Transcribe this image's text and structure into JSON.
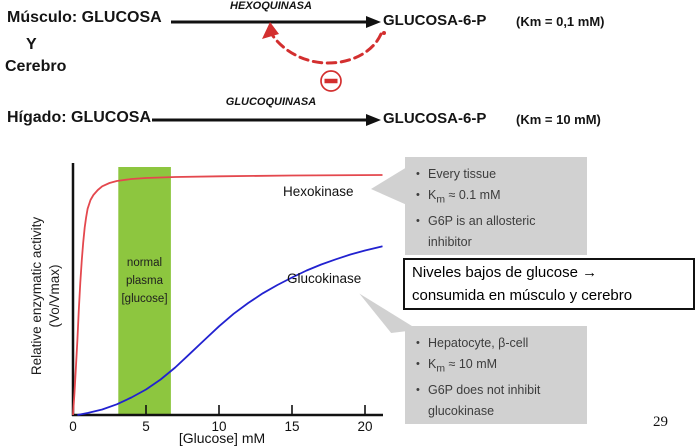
{
  "page_number": "29",
  "colors": {
    "inhibition_red": "#d32f2f",
    "hexokinase_curve_red": "#e4484e",
    "glucokinase_curve_blue": "#2222d0",
    "normal_band_green": "#8dc63f",
    "callout_gray": "#d1d1d1",
    "text_black": "#141414"
  },
  "pathway": {
    "row1": {
      "substrate": "Músculo: GLUCOSA",
      "conjunction": "Y",
      "tissue_extra": "Cerebro",
      "enzyme": "HEXOQUINASA",
      "product": "GLUCOSA-6-P",
      "km": "(Km = 0,1 mM)"
    },
    "row2": {
      "substrate": "Hígado: GLUCOSA",
      "enzyme": "GLUCOQUINASA",
      "product": "GLUCOSA-6-P",
      "km": "(Km = 10 mM)"
    },
    "inhibition_symbol": "−"
  },
  "chart_data": {
    "type": "line",
    "title": "",
    "xlabel": "[Glucose] mM",
    "ylabel": "Relative enzymatic activity (Vo/Vmax)",
    "ylabel_lines": [
      "Relative enzymatic activity",
      "(Vo/Vmax)"
    ],
    "xlim": [
      0,
      21.2
    ],
    "ylim": [
      0,
      1.05
    ],
    "x_ticks": [
      0,
      5,
      10,
      15,
      20
    ],
    "grid": false,
    "legend_position": "inline-labels",
    "annotations": {
      "normal_band": {
        "label": "normal plasma [glucose]",
        "label_lines": [
          "normal",
          "plasma",
          "[glucose]"
        ],
        "x_range_mM": [
          3.1,
          6.7
        ],
        "color": "#8dc63f"
      }
    },
    "series": [
      {
        "name": "Hexokinase",
        "color": "#e4484e",
        "km_mM": 0.1,
        "points_mM_v": [
          [
            0,
            0
          ],
          [
            0.1,
            0.09
          ],
          [
            0.2,
            0.19
          ],
          [
            0.3,
            0.3
          ],
          [
            0.4,
            0.42
          ],
          [
            0.5,
            0.53
          ],
          [
            0.6,
            0.62
          ],
          [
            0.7,
            0.69
          ],
          [
            0.8,
            0.75
          ],
          [
            0.9,
            0.79
          ],
          [
            1.0,
            0.825
          ],
          [
            1.2,
            0.86
          ],
          [
            1.4,
            0.88
          ],
          [
            1.7,
            0.9
          ],
          [
            2.0,
            0.915
          ],
          [
            2.5,
            0.928
          ],
          [
            3.0,
            0.936
          ],
          [
            4.0,
            0.944
          ],
          [
            5.0,
            0.948
          ],
          [
            7.0,
            0.952
          ],
          [
            10,
            0.955
          ],
          [
            15,
            0.958
          ],
          [
            21.2,
            0.96
          ]
        ]
      },
      {
        "name": "Glucokinase",
        "color": "#2222d0",
        "km_mM": 10,
        "points_mM_v": [
          [
            0.3,
            0
          ],
          [
            1,
            0.008
          ],
          [
            2,
            0.022
          ],
          [
            3,
            0.043
          ],
          [
            4,
            0.07
          ],
          [
            5,
            0.102
          ],
          [
            6,
            0.142
          ],
          [
            7,
            0.19
          ],
          [
            8,
            0.245
          ],
          [
            9,
            0.3
          ],
          [
            10,
            0.355
          ],
          [
            11,
            0.405
          ],
          [
            12,
            0.448
          ],
          [
            13,
            0.487
          ],
          [
            14,
            0.52
          ],
          [
            15,
            0.55
          ],
          [
            16,
            0.578
          ],
          [
            17,
            0.602
          ],
          [
            18,
            0.623
          ],
          [
            19,
            0.642
          ],
          [
            20,
            0.658
          ],
          [
            21.2,
            0.675
          ]
        ]
      }
    ]
  },
  "callouts": {
    "hexokinase_box": {
      "bullets": [
        "Every tissue",
        "K_m_ ≈ 0.1 mM",
        "G6P is an allosteric inhibitor"
      ]
    },
    "note_box": {
      "line1": "Niveles bajos de glucose →",
      "line2": "consumida en músculo y cerebro"
    },
    "glucokinase_box": {
      "bullets": [
        "Hepatocyte, β-cell",
        "K_m_ ≈ 10 mM",
        "G6P does not inhibit glucokinase"
      ]
    }
  }
}
